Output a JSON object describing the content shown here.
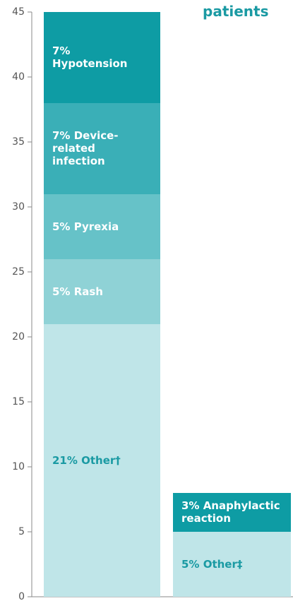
{
  "chart_data": {
    "type": "stacked_bar",
    "subtitle": "patients",
    "categories": [
      null,
      null
    ],
    "bars": [
      [
        {
          "name": "21% Other†",
          "value": 21,
          "color": "#bfe5e8",
          "label_color": "#1a9aa3"
        },
        {
          "name": "5% Rash",
          "value": 5,
          "color": "#8fd2d6",
          "label_color": "#ffffff"
        },
        {
          "name": "5% Pyrexia",
          "value": 5,
          "color": "#66c2c8",
          "label_color": "#ffffff"
        },
        {
          "name": "7% Device-related infection",
          "value": 7,
          "color": "#3aafb7",
          "label_color": "#ffffff"
        },
        {
          "name": "7% Hypotension",
          "value": 7,
          "color": "#0e9ca4",
          "label_color": "#ffffff"
        }
      ],
      [
        {
          "name": "5% Other‡",
          "value": 5,
          "color": "#bfe5e8",
          "label_color": "#1a9aa3"
        },
        {
          "name": "3% Anaphylactic reaction",
          "value": 3,
          "color": "#0e9ca4",
          "label_color": "#ffffff"
        }
      ]
    ],
    "ylim": [
      0,
      45
    ],
    "yticks": [
      0,
      5,
      10,
      15,
      20,
      25,
      30,
      35,
      40,
      45
    ]
  }
}
